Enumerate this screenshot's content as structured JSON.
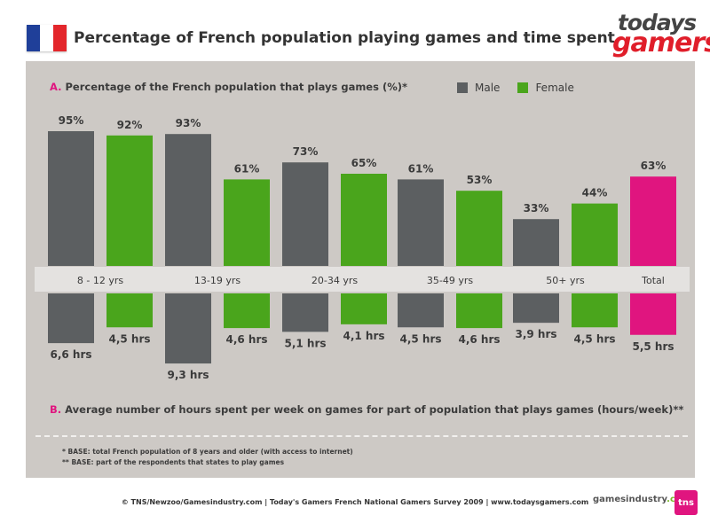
{
  "header": {
    "title": "Percentage of French population playing games and time spent.",
    "logo_line1": "todays",
    "logo_line2": "gamers",
    "flag_colors": [
      "#1f3f99",
      "#ffffff",
      "#e3262b"
    ]
  },
  "section_a": {
    "letter": "A.",
    "label": "Percentage of the French population that plays games (%)*"
  },
  "section_b": {
    "letter": "B.",
    "label": "Average number of hours spent per week on games for part of population that plays games (hours/week)**"
  },
  "legend": {
    "male": "Male",
    "female": "Female"
  },
  "colors": {
    "male": "#5c5f61",
    "female": "#4aa51c",
    "total": "#e0157f",
    "panel": "#cdc9c5",
    "band": "#e4e2e0"
  },
  "chart_data": {
    "type": "bar",
    "categories": [
      "8 - 12 yrs",
      "13-19 yrs",
      "20-34 yrs",
      "35-49 yrs",
      "50+ yrs",
      "Total"
    ],
    "series": [
      {
        "name": "Male",
        "percent": [
          95,
          93,
          73,
          61,
          33,
          null
        ],
        "percent_labels": [
          "95%",
          "93%",
          "73%",
          "61%",
          "33%",
          ""
        ],
        "hours": [
          6.6,
          9.3,
          5.1,
          4.5,
          3.9,
          null
        ],
        "hours_labels": [
          "6,6 hrs",
          "9,3 hrs",
          "5,1 hrs",
          "4,5 hrs",
          "3,9 hrs",
          ""
        ]
      },
      {
        "name": "Female",
        "percent": [
          92,
          61,
          65,
          53,
          44,
          null
        ],
        "percent_labels": [
          "92%",
          "61%",
          "65%",
          "53%",
          "44%",
          ""
        ],
        "hours": [
          4.5,
          4.6,
          4.1,
          4.6,
          4.5,
          null
        ],
        "hours_labels": [
          "4,5 hrs",
          "4,6 hrs",
          "4,1 hrs",
          "4,6 hrs",
          "4,5 hrs",
          ""
        ]
      }
    ],
    "total": {
      "percent": 63,
      "percent_label": "63%",
      "hours": 5.5,
      "hours_label": "5,5 hrs"
    },
    "ylim_percent": [
      0,
      100
    ],
    "ylim_hours": [
      0,
      10
    ]
  },
  "notes": [
    "* BASE: total French population of 8 years and older (with access to internet)",
    "** BASE: part of the respondents that states to play games"
  ],
  "footer": {
    "credit": "© TNS/Newzoo/Gamesindustry.com | Today's Gamers French National Gamers Survey 2009 | www.todaysgamers.com",
    "gi_logo": "gamesindustry",
    "gi_logo_sub": ".com",
    "tns_logo": "tns"
  }
}
